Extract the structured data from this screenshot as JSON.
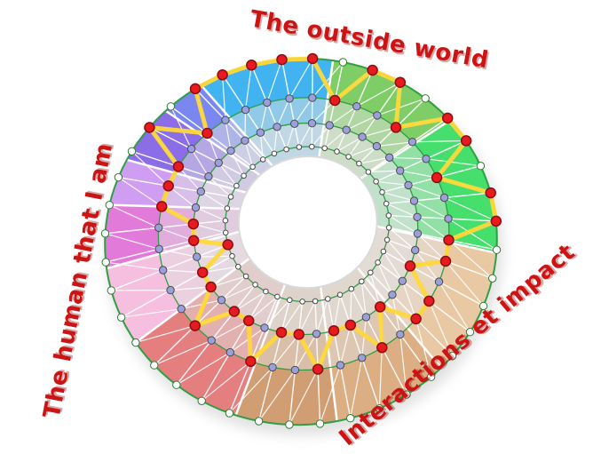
{
  "title_labels": {
    "outside": {
      "text": "The outside world"
    },
    "human": {
      "text": "The human that I am"
    },
    "interactions": {
      "text": "Interactions et impact"
    }
  },
  "label_color": "#cc1414",
  "chart_data": {
    "type": "wheel-diagram",
    "description": "Circular assessment wheel (tilted donut) split into colored sectors with 4 concentric node rings, a triangulated white mesh, and a yellow profile path connecting red selected nodes; one red node per spoke at the ring level given by profile_ring_per_spoke (0=innermost ring, 3=outer ring).",
    "spokes": 40,
    "rings_t": [
      0.1,
      0.34,
      0.6,
      1.0
    ],
    "bands": [
      {
        "t0": 0.0,
        "t1": 0.34,
        "opacity": 0.2
      },
      {
        "t0": 0.34,
        "t1": 0.6,
        "opacity": 0.5
      },
      {
        "t0": 0.6,
        "t1": 1.0,
        "opacity": 1.0
      }
    ],
    "sectors": [
      {
        "name": "cyan",
        "color": "#41b3f0",
        "from": -25,
        "to": 15
      },
      {
        "name": "green-mid",
        "color": "#7fcd66",
        "from": 15,
        "to": 55
      },
      {
        "name": "green-bright",
        "color": "#46df6d",
        "from": 55,
        "to": 100
      },
      {
        "name": "tan-light",
        "color": "#e9c9a4",
        "from": 100,
        "to": 140
      },
      {
        "name": "tan-mid",
        "color": "#dcae83",
        "from": 140,
        "to": 175
      },
      {
        "name": "tan-dark",
        "color": "#d19d72",
        "from": 175,
        "to": 205
      },
      {
        "name": "salmon",
        "color": "#e57f7f",
        "from": 205,
        "to": 243
      },
      {
        "name": "pink-light",
        "color": "#f6bfe0",
        "from": 243,
        "to": 268
      },
      {
        "name": "orchid",
        "color": "#e27ad9",
        "from": 268,
        "to": 288
      },
      {
        "name": "lavender",
        "color": "#cf9ef2",
        "from": 288,
        "to": 303
      },
      {
        "name": "purple",
        "color": "#8a6de7",
        "from": 303,
        "to": 322
      },
      {
        "name": "periwinkle",
        "color": "#7b87f0",
        "from": 322,
        "to": 335
      }
    ],
    "node_ring_colors": [
      "#ffffff",
      "#9b9fdc",
      "#9b9fdc",
      "#ffffff"
    ],
    "profile_ring_per_spoke": [
      3,
      3,
      2,
      3,
      3,
      2,
      3,
      3,
      2,
      3,
      3,
      2,
      2,
      1,
      2,
      2,
      1,
      2,
      1,
      1,
      2,
      1,
      1,
      2,
      1,
      1,
      2,
      1,
      1,
      0,
      1,
      1,
      2,
      2,
      2,
      3,
      2,
      3,
      3,
      3
    ],
    "colors": {
      "path": "#ffd83a",
      "red_node": "#e71a20",
      "red_node_stroke": "#8a0f12",
      "ring_line": "#2f9e44",
      "mesh": "#ffffff",
      "node_stroke": "#4a4a4a",
      "outer_node_stroke": "#2e7d32",
      "hole_edge": "#d9d9d9"
    }
  }
}
